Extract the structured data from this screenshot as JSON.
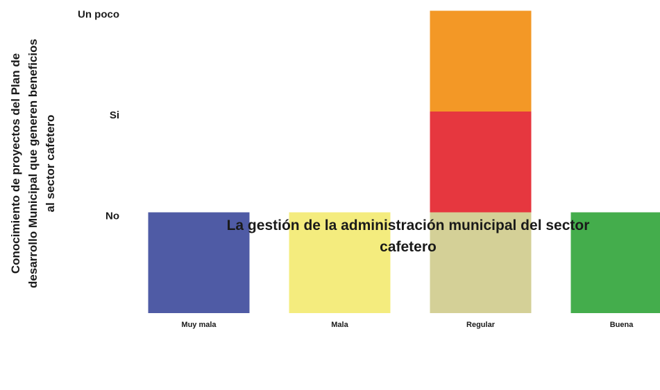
{
  "chart_data": {
    "type": "bar",
    "subtype": "stacked-categorical",
    "title": "",
    "xlabel_lines": [
      "La gestión de la administración municipal del sector",
      "cafetero"
    ],
    "ylabel_lines": [
      "Conocimiento de proyectos del Plan de",
      "desarrollo Municipal que generen beneficios",
      "al sector cafetero"
    ],
    "x_categories": [
      "Muy mala",
      "Mala",
      "Regular",
      "Buena"
    ],
    "y_categories": [
      "No",
      "Si",
      "Un poco"
    ],
    "grid": false,
    "legend": "none",
    "segments": [
      {
        "x": "Muy mala",
        "y": "No",
        "color": "#4f5ba5"
      },
      {
        "x": "Mala",
        "y": "No",
        "color": "#f4ec7e"
      },
      {
        "x": "Regular",
        "y": "No",
        "color": "#d4d097"
      },
      {
        "x": "Regular",
        "y": "Si",
        "color": "#e6373f"
      },
      {
        "x": "Regular",
        "y": "Un poco",
        "color": "#f39826"
      },
      {
        "x": "Buena",
        "y": "No",
        "color": "#44ad4c"
      }
    ]
  }
}
